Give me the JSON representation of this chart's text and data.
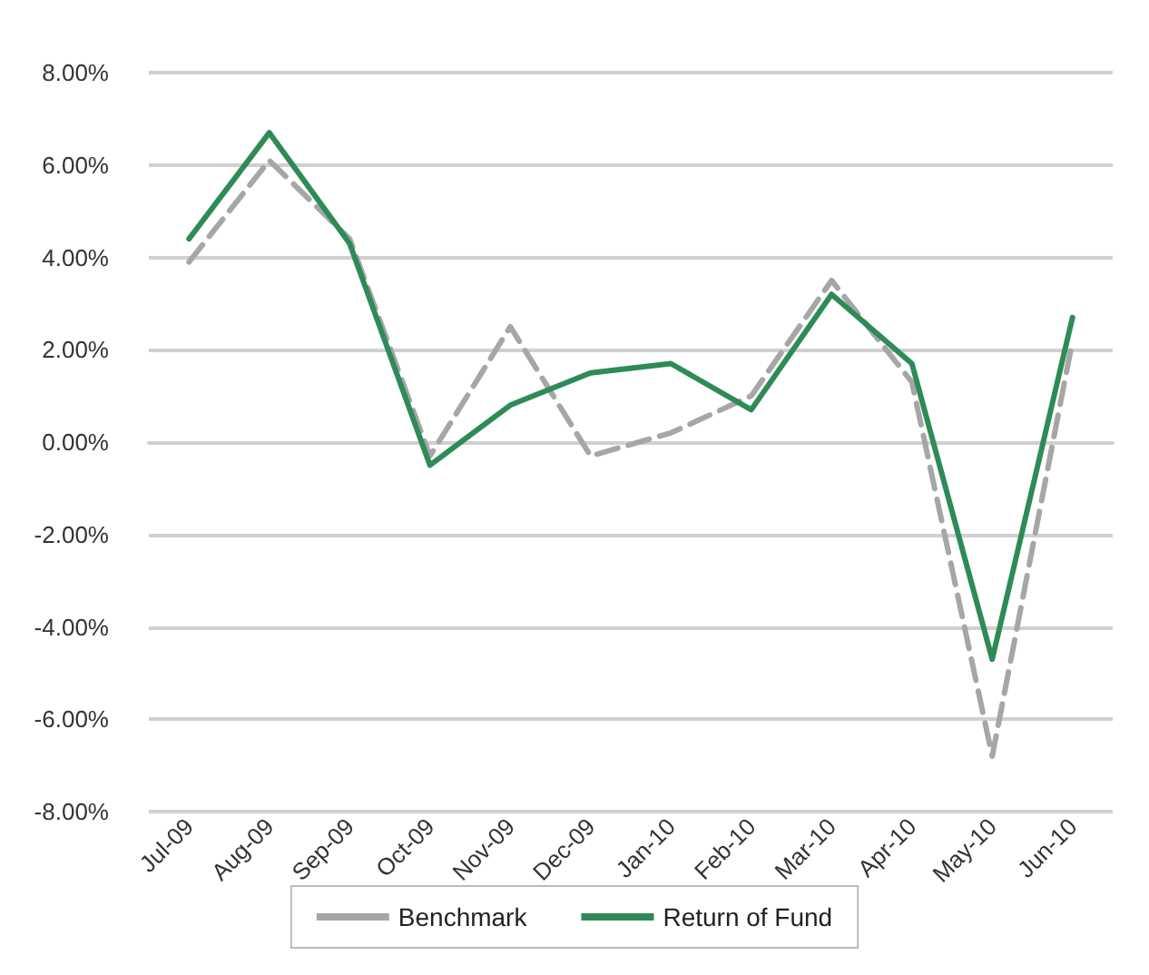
{
  "chart_data": {
    "type": "line",
    "categories": [
      "Jul-09",
      "Aug-09",
      "Sep-09",
      "Oct-09",
      "Nov-09",
      "Dec-09",
      "Jan-10",
      "Feb-10",
      "Mar-10",
      "Apr-10",
      "May-10",
      "Jun-10"
    ],
    "series": [
      {
        "name": "Benchmark",
        "color": "#a6a6a6",
        "line_style": "dashed",
        "values": [
          3.9,
          6.1,
          4.4,
          -0.3,
          2.5,
          -0.3,
          0.2,
          1.0,
          3.5,
          1.3,
          -6.8,
          2.2
        ]
      },
      {
        "name": "Return of Fund",
        "color": "#2e8b57",
        "line_style": "solid",
        "values": [
          4.4,
          6.7,
          4.3,
          -0.5,
          0.8,
          1.5,
          1.7,
          0.7,
          3.2,
          1.7,
          -4.7,
          2.7
        ]
      }
    ],
    "ylim": [
      -8,
      8
    ],
    "yticks": [
      {
        "value": -8,
        "label": "-8.00%"
      },
      {
        "value": -6,
        "label": "-6.00%"
      },
      {
        "value": -4,
        "label": "-4.00%"
      },
      {
        "value": -2,
        "label": "-2.00%"
      },
      {
        "value": 0,
        "label": "0.00%"
      },
      {
        "value": 2,
        "label": "2.00%"
      },
      {
        "value": 4,
        "label": "4.00%"
      },
      {
        "value": 6,
        "label": "6.00%"
      },
      {
        "value": 8,
        "label": "8.00%"
      }
    ],
    "grid": "y",
    "legend": "bottom",
    "marker": "none"
  }
}
